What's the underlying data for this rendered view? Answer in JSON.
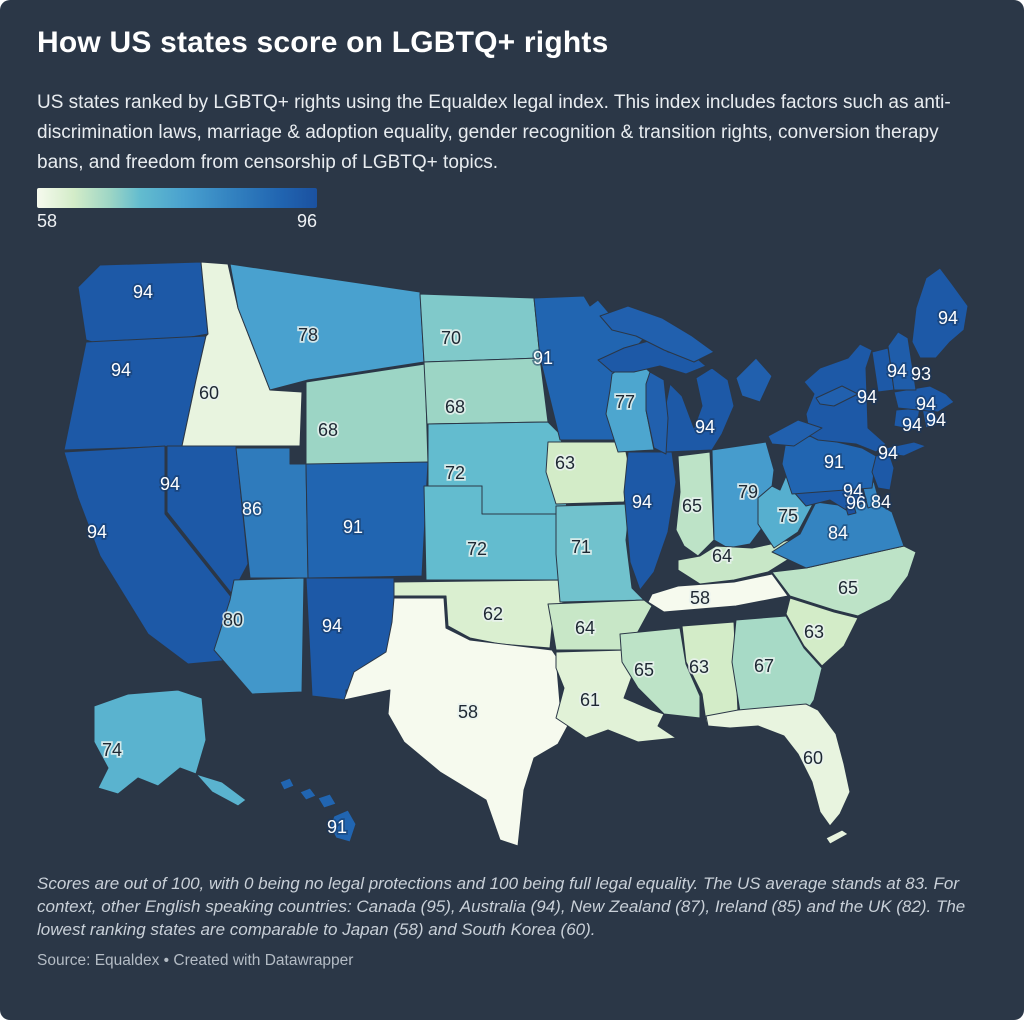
{
  "header": {
    "title": "How US states score on LGBTQ+ rights",
    "description": "US states ranked by LGBTQ+ rights using the Equaldex legal index. This index includes factors such as anti-discrimination laws, marriage & adoption equality, gender recognition & transition rights, conversion therapy bans, and freedom from censorship of LGBTQ+ topics."
  },
  "legend": {
    "min_label": "58",
    "max_label": "96"
  },
  "footer": {
    "footnote": "Scores are out of 100, with 0 being no legal protections and 100 being full legal equality. The US average stands at 83. For context, other English speaking countries: Canada (95), Australia (94), New Zealand (87), Ireland (85) and the UK (82). The lowest ranking states are comparable to Japan (58) and South Korea (60).",
    "source": "Source: Equaldex • Created with Datawrapper"
  },
  "colors": {
    "background": "#2b3747",
    "water_lakes": "#2160ae",
    "label_dark": "#1e2833",
    "label_light": "#ffffff",
    "light_label_threshold": 82,
    "scale_stops": [
      {
        "value": 58,
        "color": "#f6faee"
      },
      {
        "value": 63,
        "color": "#d3ecc8"
      },
      {
        "value": 68,
        "color": "#9cd5c5"
      },
      {
        "value": 72,
        "color": "#63bccf"
      },
      {
        "value": 78,
        "color": "#49a1cf"
      },
      {
        "value": 84,
        "color": "#3484c1"
      },
      {
        "value": 91,
        "color": "#2165b1"
      },
      {
        "value": 96,
        "color": "#1b51a0"
      }
    ]
  },
  "chart_data": {
    "type": "choropleth",
    "title": "How US states score on LGBTQ+ rights",
    "unit": "Equaldex legal index score (0–100)",
    "range": [
      58,
      96
    ],
    "legend": {
      "min": 58,
      "max": 96,
      "position": "top-left",
      "style": "continuous-gradient"
    },
    "states": [
      {
        "state": "WA",
        "score": 94
      },
      {
        "state": "OR",
        "score": 94
      },
      {
        "state": "CA",
        "score": 94
      },
      {
        "state": "NV",
        "score": 94
      },
      {
        "state": "ID",
        "score": 60
      },
      {
        "state": "MT",
        "score": 78
      },
      {
        "state": "WY",
        "score": 68
      },
      {
        "state": "UT",
        "score": 86
      },
      {
        "state": "CO",
        "score": 91
      },
      {
        "state": "AZ",
        "score": 80
      },
      {
        "state": "NM",
        "score": 94
      },
      {
        "state": "ND",
        "score": 70
      },
      {
        "state": "SD",
        "score": 68
      },
      {
        "state": "NE",
        "score": 72
      },
      {
        "state": "KS",
        "score": 72
      },
      {
        "state": "OK",
        "score": 62
      },
      {
        "state": "TX",
        "score": 58
      },
      {
        "state": "MN",
        "score": 91
      },
      {
        "state": "IA",
        "score": 63
      },
      {
        "state": "MO",
        "score": 71
      },
      {
        "state": "AR",
        "score": 64
      },
      {
        "state": "LA",
        "score": 61
      },
      {
        "state": "WI",
        "score": 77
      },
      {
        "state": "IL",
        "score": 94
      },
      {
        "state": "MI",
        "score": 94
      },
      {
        "state": "IN",
        "score": 65
      },
      {
        "state": "OH",
        "score": 79
      },
      {
        "state": "KY",
        "score": 64
      },
      {
        "state": "TN",
        "score": 58
      },
      {
        "state": "MS",
        "score": 65
      },
      {
        "state": "AL",
        "score": 63
      },
      {
        "state": "GA",
        "score": 67
      },
      {
        "state": "FL",
        "score": 60
      },
      {
        "state": "SC",
        "score": 63
      },
      {
        "state": "NC",
        "score": 65
      },
      {
        "state": "VA",
        "score": 84
      },
      {
        "state": "WV",
        "score": 75
      },
      {
        "state": "MD",
        "score": 94
      },
      {
        "state": "DE",
        "score": 84
      },
      {
        "state": "DC",
        "score": 96
      },
      {
        "state": "PA",
        "score": 91
      },
      {
        "state": "NJ",
        "score": 94
      },
      {
        "state": "NY",
        "score": 94
      },
      {
        "state": "CT",
        "score": 94
      },
      {
        "state": "RI",
        "score": 94
      },
      {
        "state": "MA",
        "score": 94
      },
      {
        "state": "VT",
        "score": 94
      },
      {
        "state": "NH",
        "score": 93
      },
      {
        "state": "ME",
        "score": 94
      },
      {
        "state": "AK",
        "score": 74
      },
      {
        "state": "HI",
        "score": 91
      }
    ]
  }
}
